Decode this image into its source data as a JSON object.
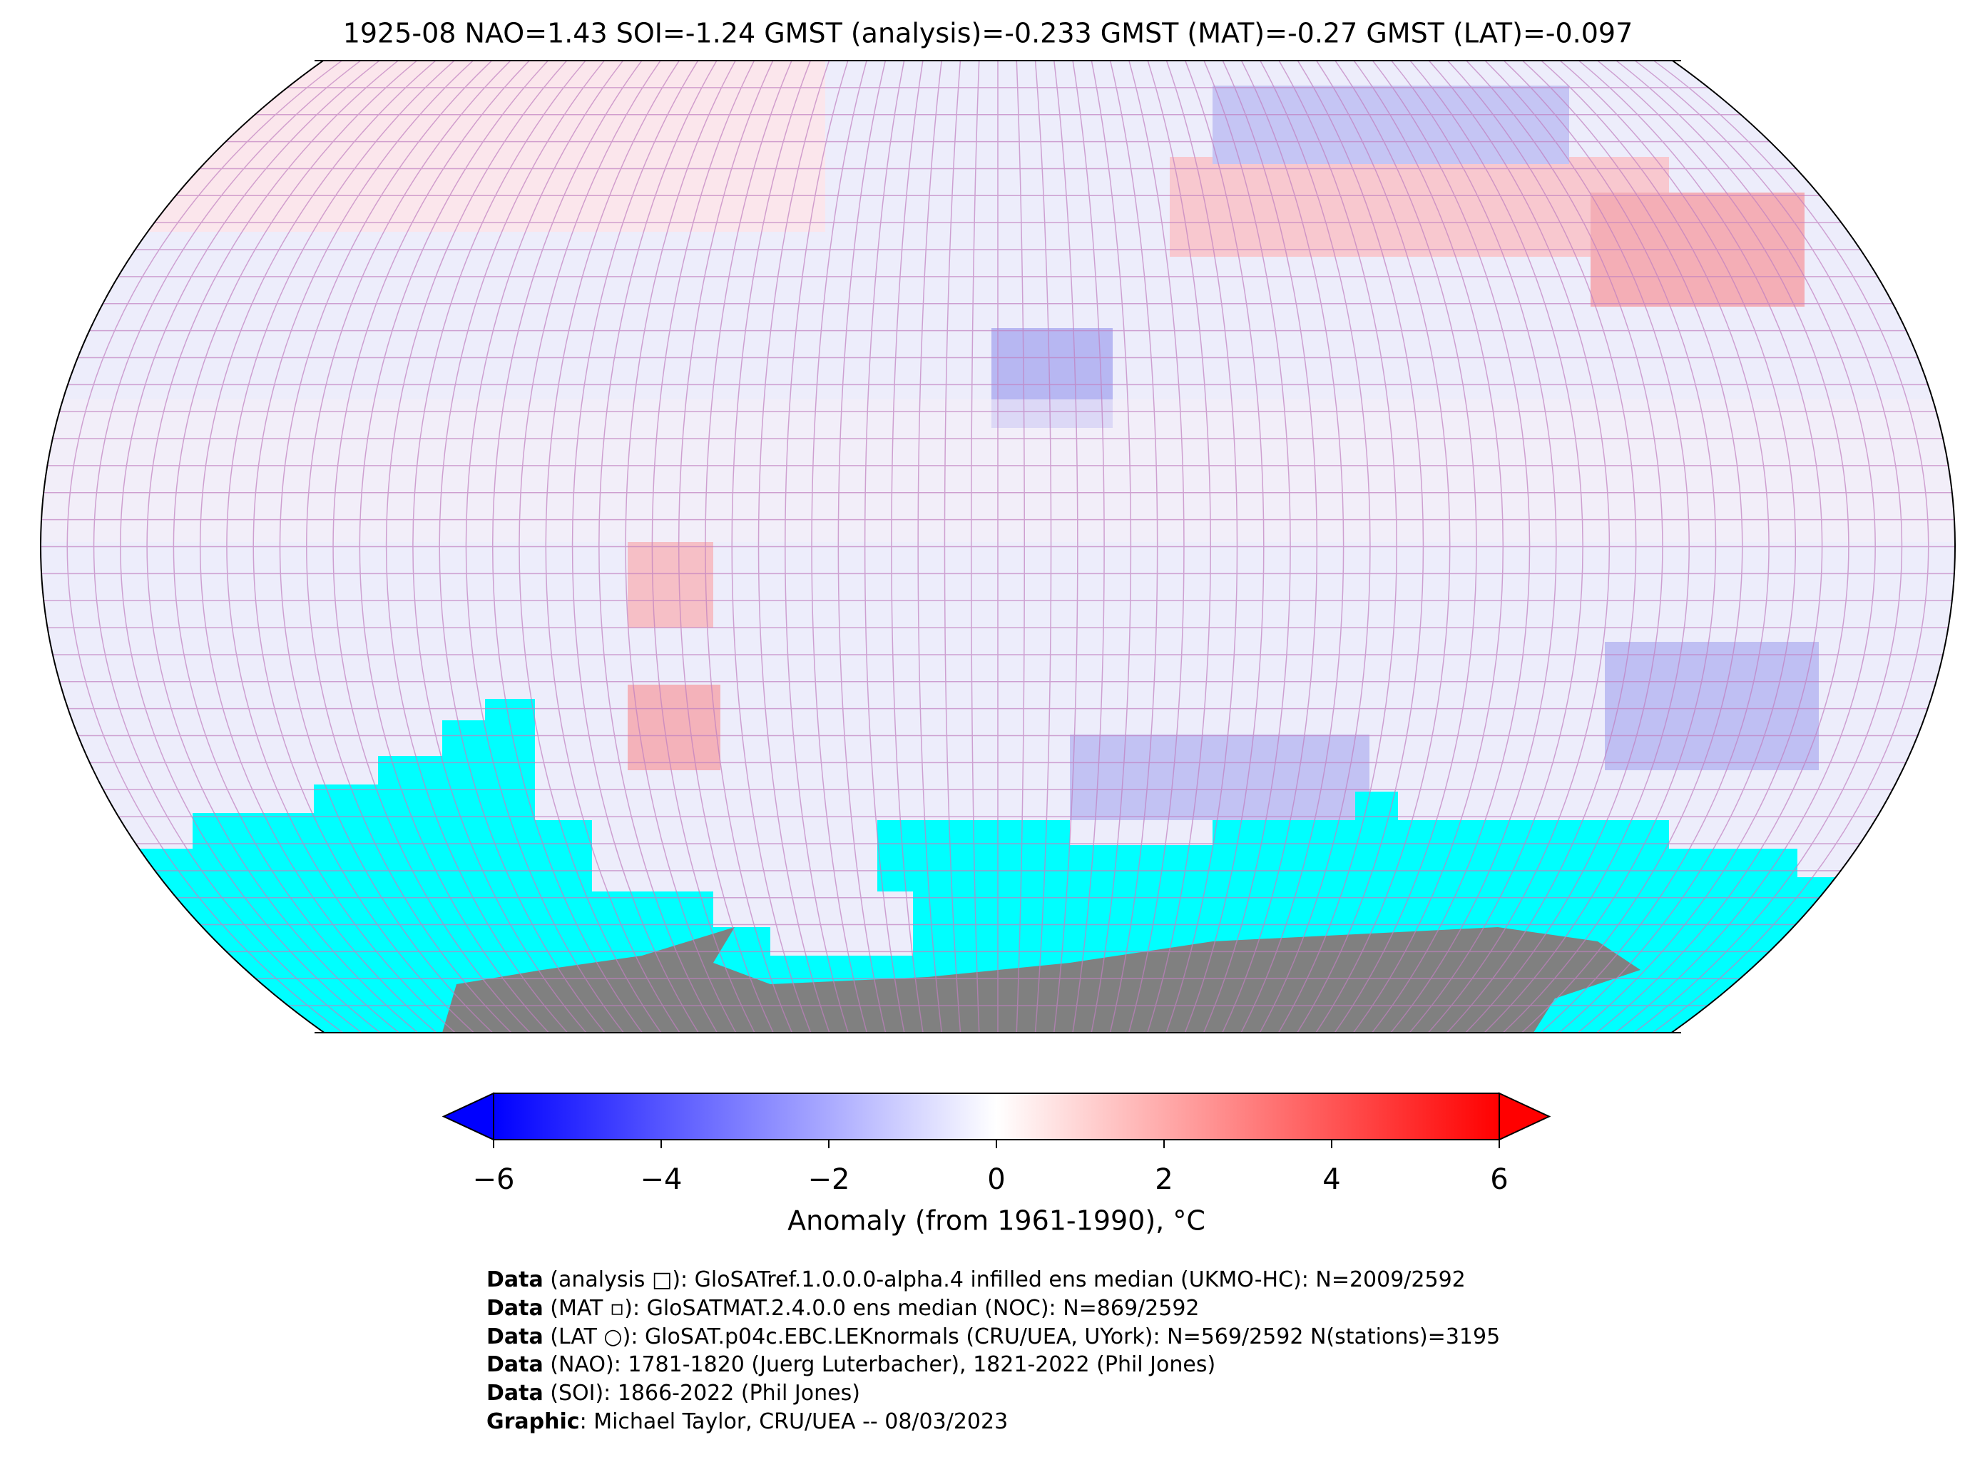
{
  "header": {
    "title": "1925-08 NAO=1.43 SOI=-1.24 GMST (analysis)=-0.233 GMST (MAT)=-0.27 GMST (LAT)=-0.097"
  },
  "colorbar": {
    "label": "Anomaly (from 1961-1990), °C",
    "clim": [
      -6,
      6
    ],
    "colors": [
      "#0000ff",
      "#ffffff",
      "#ff0000"
    ],
    "ticks": [
      {
        "value": -6,
        "label": "−6"
      },
      {
        "value": -4,
        "label": "−4"
      },
      {
        "value": -2,
        "label": "−2"
      },
      0,
      2,
      4,
      6
    ]
  },
  "footer": [
    {
      "bold": "Data",
      "text": " (analysis □): GloSATref.1.0.0.0-alpha.4 infilled ens median (UKMO-HC): N=2009/2592"
    },
    {
      "bold": "Data",
      "text": " (MAT ▫): GloSATMAT.2.4.0.0 ens median (NOC): N=869/2592"
    },
    {
      "bold": "Data",
      "text": " (LAT ○): GloSAT.p04c.EBC.LEKnormals (CRU/UEA, UYork): N=569/2592 N(stations)=3195"
    },
    {
      "bold": "Data",
      "text": " (NAO): 1781-1820 (Juerg Luterbacher), 1821-2022 (Phil Jones)"
    },
    {
      "bold": "Data",
      "text": " (SOI): 1866-2022 (Phil Jones)"
    },
    {
      "bold": "Graphic",
      "text": ": Michael Taylor, CRU/UEA -- 08/03/2023"
    }
  ]
}
